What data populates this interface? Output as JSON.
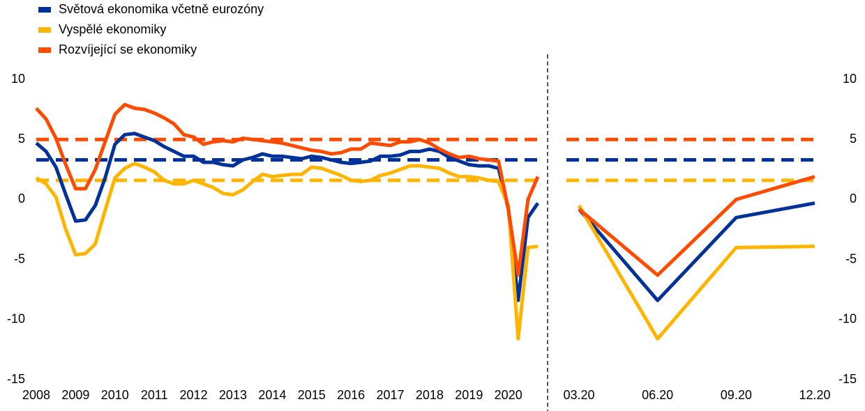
{
  "chart_data": [
    {
      "type": "line",
      "categories": [
        "2008",
        null,
        null,
        null,
        "2009",
        null,
        null,
        null,
        "2010",
        null,
        null,
        null,
        "2011",
        null,
        null,
        null,
        "2012",
        null,
        null,
        null,
        "2013",
        null,
        null,
        null,
        "2014",
        null,
        null,
        null,
        "2015",
        null,
        null,
        null,
        "2016",
        null,
        null,
        null,
        "2017",
        null,
        null,
        null,
        "2018",
        null,
        null,
        null,
        "2019",
        null,
        null,
        null,
        "2020",
        null,
        null,
        null
      ],
      "series": [
        {
          "name": "Světová ekonomika včetně eurozóny",
          "color": "#003299",
          "average": 3.3,
          "values": [
            4.7,
            4.0,
            2.7,
            0.4,
            -1.8,
            -1.7,
            -0.5,
            1.8,
            4.6,
            5.4,
            5.5,
            5.2,
            4.9,
            4.4,
            4.0,
            3.6,
            3.6,
            3.1,
            3.1,
            2.9,
            2.8,
            3.3,
            3.5,
            3.8,
            3.6,
            3.6,
            3.5,
            3.4,
            3.6,
            3.5,
            3.3,
            3.1,
            3.0,
            3.1,
            3.2,
            3.6,
            3.6,
            3.7,
            4.0,
            4.0,
            4.2,
            4.0,
            3.5,
            3.2,
            2.9,
            2.8,
            2.8,
            2.6,
            -0.8,
            -8.4,
            -1.5,
            -0.3
          ]
        },
        {
          "name": "Vyspělé ekonomiky",
          "color": "#ffb400",
          "average": 1.6,
          "values": [
            1.8,
            1.3,
            0.2,
            -2.5,
            -4.6,
            -4.5,
            -3.7,
            -0.9,
            1.8,
            2.6,
            3.0,
            2.7,
            2.3,
            1.6,
            1.3,
            1.3,
            1.6,
            1.3,
            1.0,
            0.5,
            0.4,
            0.8,
            1.5,
            2.1,
            1.9,
            2.0,
            2.1,
            2.1,
            2.7,
            2.6,
            2.3,
            2.0,
            1.6,
            1.5,
            1.6,
            2.0,
            2.2,
            2.5,
            2.8,
            2.8,
            2.7,
            2.6,
            2.2,
            1.9,
            1.9,
            1.8,
            1.6,
            1.5,
            -0.5,
            -11.6,
            -4.0,
            -3.9
          ]
        },
        {
          "name": "Rozvíjející se ekonomiky",
          "color": "#ff4b00",
          "average": 5.0,
          "values": [
            7.6,
            6.7,
            5.1,
            2.9,
            0.9,
            0.9,
            2.5,
            4.8,
            7.1,
            7.9,
            7.6,
            7.5,
            7.2,
            6.8,
            6.3,
            5.4,
            5.2,
            4.6,
            4.8,
            4.9,
            4.8,
            5.1,
            5.0,
            4.9,
            4.8,
            4.7,
            4.5,
            4.3,
            4.1,
            4.0,
            3.8,
            3.9,
            4.2,
            4.2,
            4.7,
            4.6,
            4.5,
            4.8,
            4.8,
            5.0,
            4.7,
            4.2,
            3.8,
            3.5,
            3.6,
            3.4,
            3.3,
            3.2,
            -0.8,
            -6.3,
            0.0,
            1.9
          ]
        }
      ],
      "ylim": [
        -15,
        10
      ],
      "yticks": [
        -15,
        -10,
        -5,
        0,
        5,
        10
      ]
    },
    {
      "type": "line",
      "categories": [
        "03.20",
        "06.20",
        "09.20",
        "12.20"
      ],
      "series": [
        {
          "color": "#003299",
          "average": 3.3,
          "values": [
            -0.8,
            -8.4,
            -1.5,
            -0.3
          ]
        },
        {
          "color": "#ffb400",
          "average": 1.6,
          "values": [
            -0.5,
            -11.6,
            -4.0,
            -3.9
          ]
        },
        {
          "color": "#ff4b00",
          "average": 5.0,
          "values": [
            -0.8,
            -6.3,
            0.0,
            1.9
          ]
        }
      ],
      "ylim": [
        -15,
        10
      ],
      "yticks": [
        -15,
        -10,
        -5,
        0,
        5,
        10
      ]
    }
  ]
}
